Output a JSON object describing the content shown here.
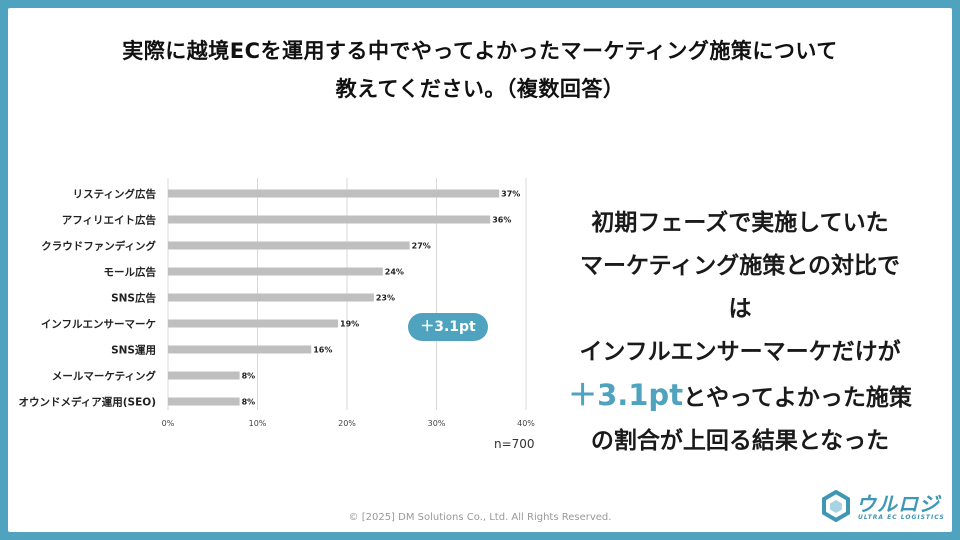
{
  "title": {
    "line1": "実際に越境ECを運用する中でやってよかったマーケティング施策について",
    "line2": "教えてください。（複数回答）"
  },
  "chart_data": {
    "type": "bar",
    "orientation": "horizontal",
    "categories": [
      "リスティング広告",
      "アフィリエイト広告",
      "クラウドファンディング",
      "モール広告",
      "SNS広告",
      "インフルエンサーマーケ",
      "SNS運用",
      "メールマーケティング",
      "オウンドメディア運用(SEO)"
    ],
    "values": [
      37,
      36,
      27,
      24,
      23,
      19,
      16,
      8,
      8
    ],
    "data_labels": [
      "37%",
      "36%",
      "27%",
      "24%",
      "23%",
      "19%",
      "16%",
      "8%",
      "8%"
    ],
    "xticks": [
      "0%",
      "10%",
      "20%",
      "30%",
      "40%"
    ],
    "xlim": [
      0,
      40
    ],
    "grid": true,
    "bar_color": "#bfbfbf",
    "n_label": "n=700",
    "annotation": "＋3.1pt"
  },
  "message": {
    "line1": "初期フェーズで実施していた",
    "line2": "マーケティング施策との対比で",
    "line3": "は",
    "line4": "インフルエンサーマーケだけが",
    "highlight": "＋3.1pt",
    "line5_rest": "とやってよかった施策",
    "line6": "の割合が上回る結果となった"
  },
  "logo": {
    "name": "ウルロジ",
    "tag": "ULTRA EC LOGISTICS"
  },
  "copyright": "© [2025] DM Solutions Co., Ltd. All Rights Reserved.",
  "colors": {
    "accent": "#4fa3be",
    "border": "#4fa3be",
    "bar": "#bfbfbf"
  }
}
